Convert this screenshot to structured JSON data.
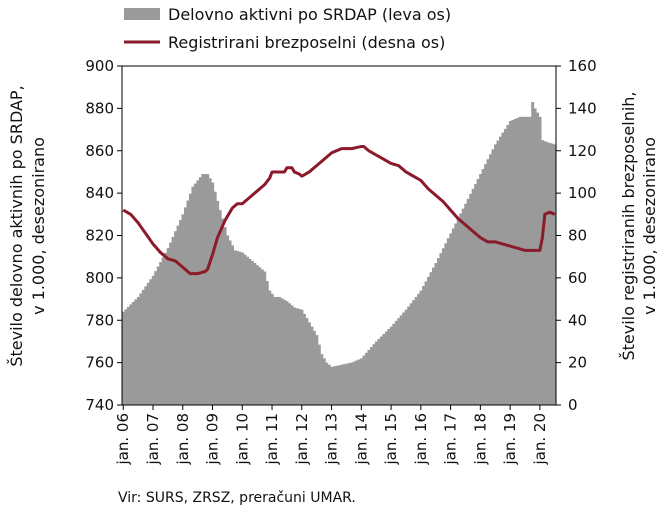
{
  "chart_data": {
    "type": "bar+line",
    "title": "",
    "legend": {
      "placement": "top",
      "entries": [
        {
          "label": "Delovno aktivni po SRDAP (leva os)",
          "kind": "area",
          "color": "#9a9a9a"
        },
        {
          "label": "Registrirani brezposelni (desna os)",
          "kind": "line",
          "color": "#8b1a2b"
        }
      ]
    },
    "y_left": {
      "label_lines": [
        "Število delovno aktivnih po SRDAP,",
        "v 1.000, desezonirano"
      ],
      "range": [
        740,
        900
      ],
      "ticks": [
        "740",
        "760",
        "780",
        "800",
        "820",
        "840",
        "860",
        "880",
        "900"
      ]
    },
    "y_right": {
      "label_lines": [
        "Število registriranih brezposelnih,",
        "v 1.000, desezonirano"
      ],
      "range": [
        0,
        160
      ],
      "ticks": [
        "0",
        "20",
        "40",
        "60",
        "80",
        "100",
        "120",
        "140",
        "160"
      ]
    },
    "x": {
      "start_year": 2006,
      "months": 175,
      "tick_labels": [
        "jan. 06",
        "jan. 07",
        "jan. 08",
        "jan. 09",
        "jan. 10",
        "jan. 11",
        "jan. 12",
        "jan. 13",
        "jan. 14",
        "jan. 15",
        "jan. 16",
        "jan. 17",
        "jan. 18",
        "jan. 19",
        "jan. 20"
      ]
    },
    "series": [
      {
        "name": "Delovno aktivni po SRDAP (leva os)",
        "axis": "left",
        "type": "bar",
        "anchors": [
          [
            0,
            784
          ],
          [
            6,
            791
          ],
          [
            12,
            801
          ],
          [
            18,
            814
          ],
          [
            24,
            830
          ],
          [
            28,
            843
          ],
          [
            32,
            849
          ],
          [
            34,
            849
          ],
          [
            36,
            845
          ],
          [
            39,
            832
          ],
          [
            42,
            820
          ],
          [
            45,
            813
          ],
          [
            48,
            812
          ],
          [
            54,
            806
          ],
          [
            57,
            803
          ],
          [
            59,
            794
          ],
          [
            61,
            791
          ],
          [
            63,
            791
          ],
          [
            66,
            789
          ],
          [
            69,
            786
          ],
          [
            72,
            785
          ],
          [
            75,
            779
          ],
          [
            78,
            773
          ],
          [
            80,
            764
          ],
          [
            82,
            760
          ],
          [
            84,
            758
          ],
          [
            88,
            759
          ],
          [
            92,
            760
          ],
          [
            96,
            762
          ],
          [
            102,
            770
          ],
          [
            108,
            777
          ],
          [
            114,
            785
          ],
          [
            120,
            794
          ],
          [
            126,
            807
          ],
          [
            132,
            821
          ],
          [
            138,
            835
          ],
          [
            144,
            849
          ],
          [
            150,
            863
          ],
          [
            156,
            874
          ],
          [
            160,
            876
          ],
          [
            164,
            876
          ],
          [
            165,
            883
          ],
          [
            166,
            880
          ],
          [
            167,
            878
          ],
          [
            168,
            876
          ],
          [
            169,
            865
          ],
          [
            171,
            864
          ],
          [
            174,
            863
          ]
        ]
      },
      {
        "name": "Registrirani brezposelni (desna os)",
        "axis": "right",
        "type": "line",
        "anchors": [
          [
            0,
            92
          ],
          [
            3,
            90
          ],
          [
            6,
            86
          ],
          [
            9,
            81
          ],
          [
            12,
            76
          ],
          [
            15,
            72
          ],
          [
            18,
            69
          ],
          [
            21,
            68
          ],
          [
            24,
            65
          ],
          [
            27,
            62
          ],
          [
            30,
            62
          ],
          [
            33,
            63
          ],
          [
            34,
            64
          ],
          [
            36,
            71
          ],
          [
            38,
            79
          ],
          [
            41,
            87
          ],
          [
            44,
            93
          ],
          [
            46,
            95
          ],
          [
            48,
            95
          ],
          [
            50,
            97
          ],
          [
            52,
            99
          ],
          [
            54,
            101
          ],
          [
            57,
            104
          ],
          [
            59,
            107
          ],
          [
            60,
            110
          ],
          [
            63,
            110
          ],
          [
            65,
            110
          ],
          [
            66,
            112
          ],
          [
            68,
            112
          ],
          [
            69,
            110
          ],
          [
            71,
            109
          ],
          [
            72,
            108
          ],
          [
            75,
            110
          ],
          [
            78,
            113
          ],
          [
            81,
            116
          ],
          [
            84,
            119
          ],
          [
            88,
            121
          ],
          [
            92,
            121
          ],
          [
            96,
            122
          ],
          [
            97,
            122
          ],
          [
            99,
            120
          ],
          [
            102,
            118
          ],
          [
            105,
            116
          ],
          [
            108,
            114
          ],
          [
            111,
            113
          ],
          [
            114,
            110
          ],
          [
            117,
            108
          ],
          [
            120,
            106
          ],
          [
            123,
            102
          ],
          [
            126,
            99
          ],
          [
            129,
            96
          ],
          [
            132,
            92
          ],
          [
            135,
            88
          ],
          [
            138,
            85
          ],
          [
            141,
            82
          ],
          [
            144,
            79
          ],
          [
            147,
            77
          ],
          [
            150,
            77
          ],
          [
            153,
            76
          ],
          [
            156,
            75
          ],
          [
            159,
            74
          ],
          [
            162,
            73
          ],
          [
            164,
            73
          ],
          [
            167,
            73
          ],
          [
            168,
            73
          ],
          [
            169,
            79
          ],
          [
            170,
            90
          ],
          [
            172,
            91
          ],
          [
            174,
            90
          ]
        ]
      }
    ]
  },
  "source": "Vir: SURS, ZRSZ, preračuni UMAR."
}
